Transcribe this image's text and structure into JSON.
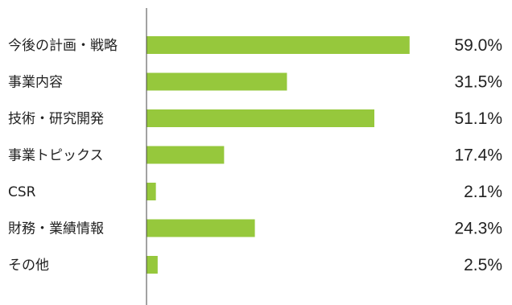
{
  "chart_data": {
    "type": "bar",
    "orientation": "horizontal",
    "categories": [
      "今後の計画・戦略",
      "事業内容",
      "技術・研究開発",
      "事業トピックス",
      "CSR",
      "財務・業績情報",
      "その他"
    ],
    "values": [
      59.0,
      31.5,
      51.1,
      17.4,
      2.1,
      24.3,
      2.5
    ],
    "value_labels": [
      "59.0%",
      "31.5%",
      "51.1%",
      "17.4%",
      "2.1%",
      "24.3%",
      "2.5%"
    ],
    "unit": "%",
    "xlim": [
      0,
      65
    ],
    "grid": false,
    "legend": "none",
    "colors": {
      "bar": "#96c83c",
      "axis": "#444444",
      "text": "#222222"
    }
  }
}
